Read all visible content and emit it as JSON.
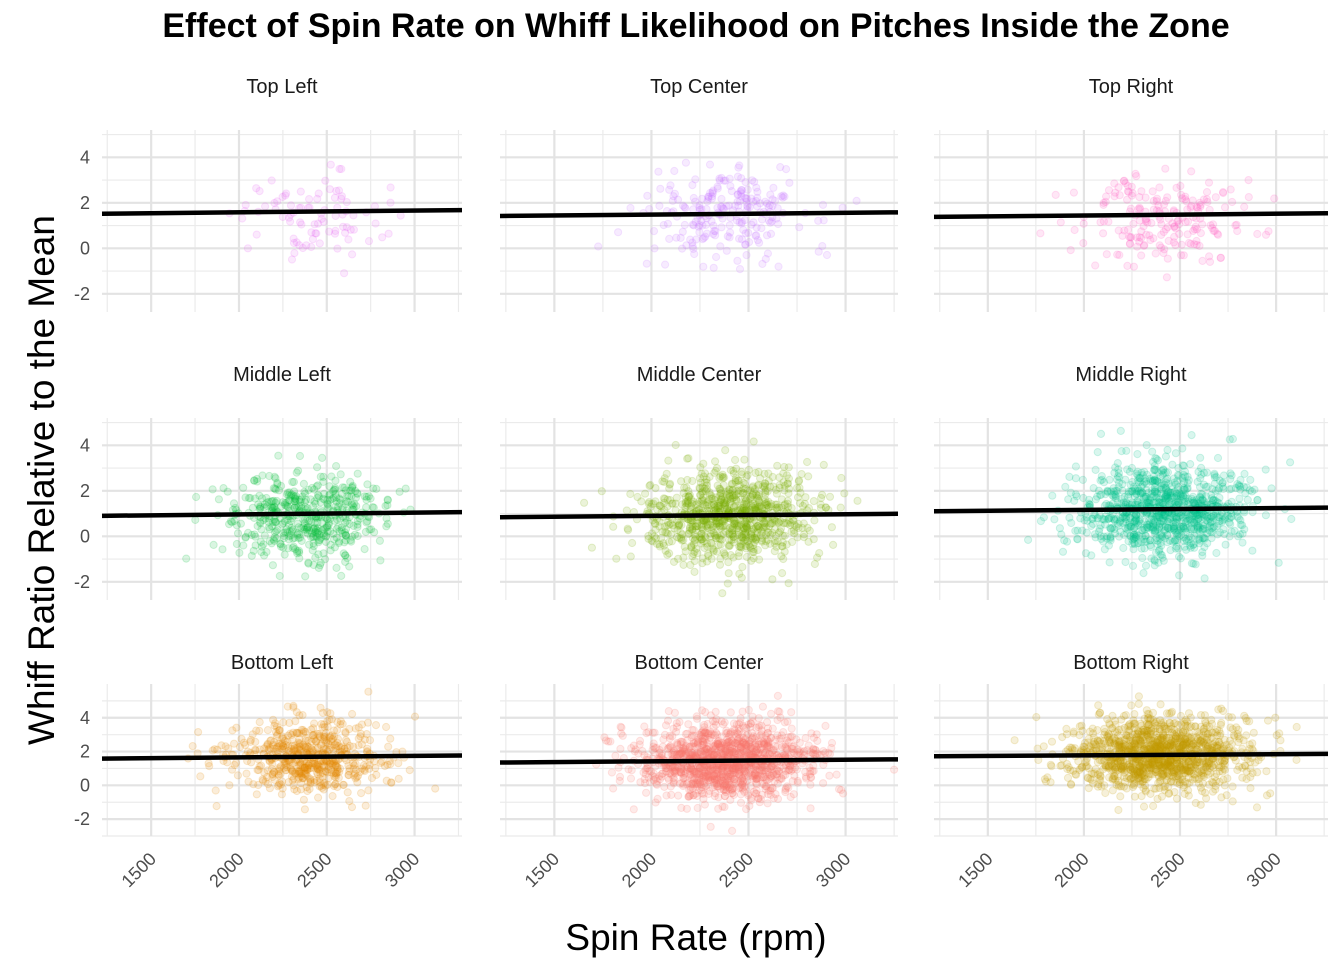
{
  "chart_data": {
    "type": "scatter",
    "title": "Effect of Spin Rate on Whiff Likelihood on Pitches Inside the Zone",
    "xlabel": "Spin Rate (rpm)",
    "ylabel": "Whiff Ratio Relative to the Mean",
    "xlim": [
      1220,
      3270
    ],
    "x_ticks": [
      1500,
      2000,
      2500,
      3000
    ],
    "x_tick_labels": [
      "1500",
      "2000",
      "2500",
      "3000"
    ],
    "y_ticks": [
      -2,
      0,
      2,
      4
    ],
    "y_tick_labels": [
      "-2",
      "0",
      "2",
      "4"
    ],
    "grid": true,
    "point_alpha": 0.15,
    "trend_color": "#000000",
    "facets": [
      {
        "name": "Top Left",
        "color": "#E76BF3",
        "ylim": [
          -2.8,
          5.2
        ],
        "n": 90,
        "x_mean": 2400,
        "x_sd": 200,
        "y_mean": 1.4,
        "y_sd": 1.0,
        "trend": [
          [
            1220,
            1.52
          ],
          [
            3270,
            1.68
          ]
        ]
      },
      {
        "name": "Top Center",
        "color": "#C77CFF",
        "ylim": [
          -2.8,
          5.2
        ],
        "n": 230,
        "x_mean": 2380,
        "x_sd": 210,
        "y_mean": 1.5,
        "y_sd": 1.0,
        "trend": [
          [
            1220,
            1.42
          ],
          [
            3270,
            1.58
          ]
        ]
      },
      {
        "name": "Top Right",
        "color": "#FF61C3",
        "ylim": [
          -2.8,
          5.2
        ],
        "n": 200,
        "x_mean": 2400,
        "x_sd": 220,
        "y_mean": 1.4,
        "y_sd": 1.0,
        "trend": [
          [
            1220,
            1.38
          ],
          [
            3270,
            1.54
          ]
        ]
      },
      {
        "name": "Middle Left",
        "color": "#00BA38",
        "ylim": [
          -2.8,
          5.2
        ],
        "n": 500,
        "x_mean": 2400,
        "x_sd": 220,
        "y_mean": 0.9,
        "y_sd": 1.0,
        "trend": [
          [
            1220,
            0.9
          ],
          [
            3270,
            1.06
          ]
        ]
      },
      {
        "name": "Middle Center",
        "color": "#7CAE00",
        "ylim": [
          -2.8,
          5.2
        ],
        "n": 900,
        "x_mean": 2400,
        "x_sd": 220,
        "y_mean": 0.9,
        "y_sd": 1.0,
        "trend": [
          [
            1220,
            0.84
          ],
          [
            3270,
            0.99
          ]
        ]
      },
      {
        "name": "Middle Right",
        "color": "#00C08B",
        "ylim": [
          -2.8,
          5.2
        ],
        "n": 1000,
        "x_mean": 2420,
        "x_sd": 220,
        "y_mean": 1.1,
        "y_sd": 1.0,
        "trend": [
          [
            1220,
            1.1
          ],
          [
            3270,
            1.26
          ]
        ]
      },
      {
        "name": "Bottom Left",
        "color": "#E38900",
        "ylim": [
          -3.0,
          6.0
        ],
        "n": 600,
        "x_mean": 2400,
        "x_sd": 220,
        "y_mean": 1.7,
        "y_sd": 1.1,
        "trend": [
          [
            1220,
            1.58
          ],
          [
            3270,
            1.77
          ]
        ]
      },
      {
        "name": "Bottom Center",
        "color": "#F8766D",
        "ylim": [
          -3.0,
          6.0
        ],
        "n": 1300,
        "x_mean": 2380,
        "x_sd": 220,
        "y_mean": 1.4,
        "y_sd": 1.1,
        "trend": [
          [
            1220,
            1.35
          ],
          [
            3270,
            1.54
          ]
        ]
      },
      {
        "name": "Bottom Right",
        "color": "#C49A00",
        "ylim": [
          -3.0,
          6.0
        ],
        "n": 1300,
        "x_mean": 2400,
        "x_sd": 220,
        "y_mean": 1.8,
        "y_sd": 1.1,
        "trend": [
          [
            1220,
            1.72
          ],
          [
            3270,
            1.86
          ]
        ]
      }
    ]
  }
}
